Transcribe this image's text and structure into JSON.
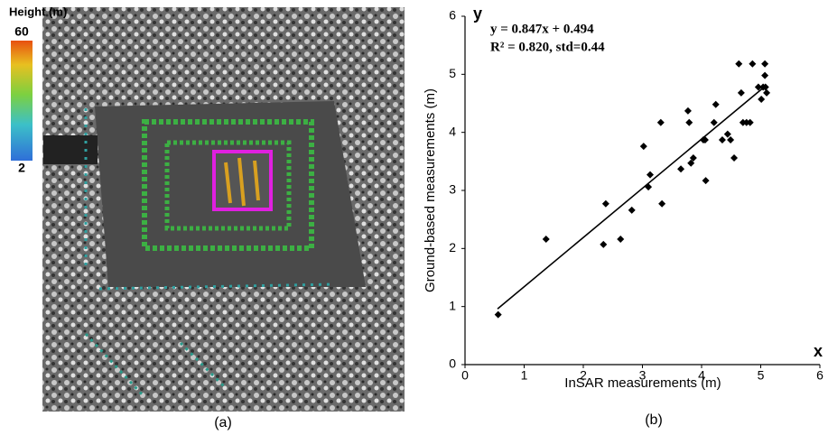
{
  "panel_a": {
    "colorbar": {
      "title": "Height (m)",
      "max": 60,
      "min": 2
    },
    "caption": "(a)"
  },
  "chart_data": {
    "type": "scatter",
    "caption": "(b)",
    "x_label": "InSAR measurements (m)",
    "y_label": "Ground-based measurements (m)",
    "x_axis_letter": "x",
    "y_axis_letter": "y",
    "annotations": [
      "y = 0.847x + 0.494",
      "R² = 0.820, std=0.44"
    ],
    "color": "#000000",
    "x": [
      0.56,
      1.37,
      2.34,
      2.38,
      2.63,
      2.82,
      3.02,
      3.13,
      3.1,
      3.31,
      3.33,
      3.65,
      3.77,
      3.79,
      3.82,
      3.86,
      4.03,
      4.06,
      4.07,
      4.21,
      4.24,
      4.35,
      4.44,
      4.49,
      4.55,
      4.63,
      4.67,
      4.7,
      4.76,
      4.82,
      4.86,
      4.96,
      5.01,
      5.07,
      5.07,
      5.08,
      5.1,
      5.04
    ],
    "y": [
      0.86,
      2.16,
      2.07,
      2.77,
      2.16,
      2.66,
      3.76,
      3.27,
      3.06,
      4.17,
      2.77,
      3.37,
      4.37,
      4.17,
      3.47,
      3.56,
      3.87,
      3.87,
      3.17,
      4.17,
      4.48,
      3.87,
      3.97,
      3.87,
      3.56,
      5.18,
      4.68,
      4.17,
      4.17,
      4.17,
      5.18,
      4.78,
      4.57,
      4.98,
      5.18,
      4.78,
      4.68,
      4.78
    ],
    "fit_line": {
      "x": [
        0.55,
        5.08
      ],
      "y": [
        0.96,
        4.8
      ]
    },
    "xlim": [
      0,
      6
    ],
    "ylim": [
      0,
      6
    ],
    "xticks": [
      0,
      1,
      2,
      3,
      4,
      5,
      6
    ],
    "yticks": [
      0,
      1,
      2,
      3,
      4,
      5,
      6
    ]
  }
}
